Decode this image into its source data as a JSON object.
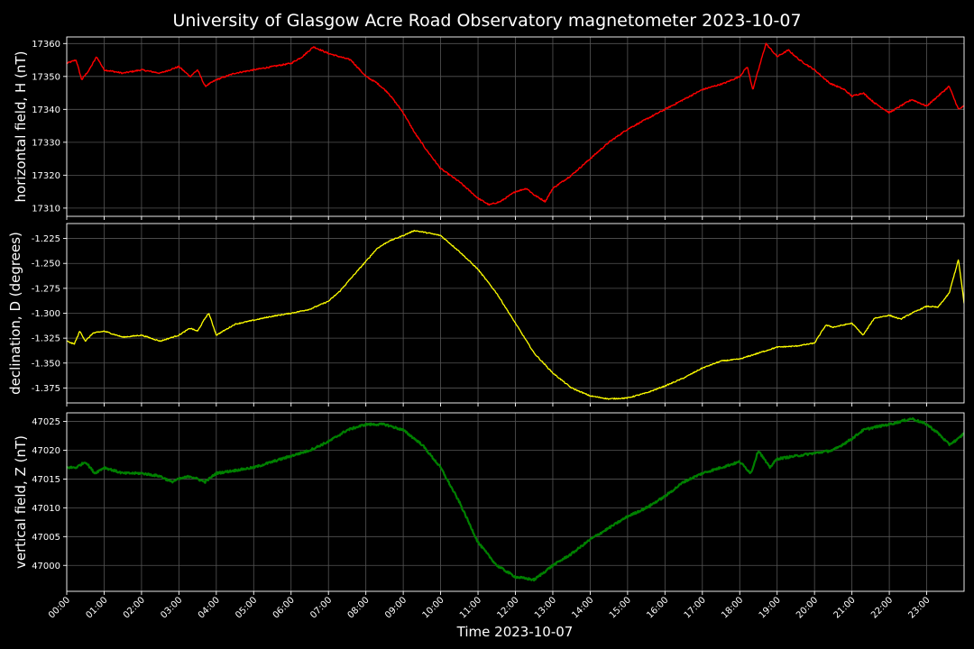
{
  "title": "University of Glasgow Acre Road Observatory magnetometer 2023-10-07",
  "xlabel": "Time 2023-10-07",
  "x_ticks": [
    "00:00",
    "01:00",
    "02:00",
    "03:00",
    "04:00",
    "05:00",
    "06:00",
    "07:00",
    "08:00",
    "09:00",
    "10:00",
    "11:00",
    "12:00",
    "13:00",
    "14:00",
    "15:00",
    "16:00",
    "17:00",
    "18:00",
    "19:00",
    "20:00",
    "21:00",
    "22:00",
    "23:00"
  ],
  "background": "#000000",
  "grid_color": "#555555",
  "chart_data": [
    {
      "type": "line",
      "ylabel": "horizontal field, H (nT)",
      "ylim": [
        17307.5,
        17362
      ],
      "y_ticks": [
        17310,
        17320,
        17330,
        17340,
        17350,
        17360
      ],
      "grid": true,
      "series": [
        {
          "color": "#ff0000",
          "x": [
            0,
            0.25,
            0.4,
            0.6,
            0.8,
            1,
            1.5,
            2,
            2.5,
            3,
            3.3,
            3.5,
            3.7,
            4,
            4.5,
            5,
            5.5,
            6,
            6.3,
            6.6,
            7,
            7.3,
            7.6,
            8,
            8.3,
            8.6,
            9,
            9.3,
            9.6,
            10,
            10.5,
            11,
            11.3,
            11.6,
            12,
            12.3,
            12.5,
            12.8,
            13,
            13.5,
            14,
            14.5,
            15,
            15.5,
            16,
            16.5,
            17,
            17.3,
            17.6,
            18,
            18.2,
            18.35,
            18.5,
            18.7,
            19,
            19.3,
            19.6,
            20,
            20.4,
            20.8,
            21,
            21.3,
            21.6,
            22,
            22.3,
            22.6,
            23,
            23.3,
            23.6,
            23.85,
            24
          ],
          "y": [
            17354,
            17355,
            17349,
            17352,
            17356,
            17352,
            17351,
            17352,
            17351,
            17353,
            17350,
            17352,
            17347,
            17349,
            17351,
            17352,
            17353,
            17354,
            17356,
            17359,
            17357,
            17356,
            17355,
            17350,
            17348,
            17345,
            17339,
            17333,
            17328,
            17322,
            17318,
            17313,
            17311,
            17312,
            17315,
            17316,
            17314,
            17312,
            17316,
            17320,
            17325,
            17330,
            17334,
            17337,
            17340,
            17343,
            17346,
            17347,
            17348,
            17350,
            17353,
            17346,
            17352,
            17360,
            17356,
            17358,
            17355,
            17352,
            17348,
            17346,
            17344,
            17345,
            17342,
            17339,
            17341,
            17343,
            17341,
            17344,
            17347,
            17340,
            17341
          ]
        }
      ]
    },
    {
      "type": "line",
      "ylabel": "declination, D (degrees)",
      "ylim": [
        -1.39,
        -1.21
      ],
      "y_ticks": [
        -1.225,
        -1.25,
        -1.275,
        -1.3,
        -1.325,
        -1.35,
        -1.375
      ],
      "grid": true,
      "series": [
        {
          "color": "#ffff00",
          "x": [
            0,
            0.2,
            0.35,
            0.5,
            0.7,
            1,
            1.5,
            2,
            2.5,
            3,
            3.3,
            3.5,
            3.7,
            3.8,
            4,
            4.5,
            5,
            5.5,
            6,
            6.5,
            7,
            7.3,
            7.6,
            8,
            8.3,
            8.6,
            9,
            9.3,
            9.6,
            10,
            10.5,
            11,
            11.5,
            12,
            12.5,
            13,
            13.5,
            14,
            14.5,
            15,
            15.5,
            16,
            16.5,
            17,
            17.5,
            18,
            18.5,
            19,
            19.5,
            20,
            20.3,
            20.5,
            21,
            21.3,
            21.6,
            22,
            22.3,
            22.6,
            23,
            23.3,
            23.6,
            23.85,
            24
          ],
          "y": [
            -1.328,
            -1.331,
            -1.318,
            -1.328,
            -1.32,
            -1.318,
            -1.324,
            -1.322,
            -1.328,
            -1.322,
            -1.315,
            -1.318,
            -1.305,
            -1.3,
            -1.322,
            -1.311,
            -1.307,
            -1.303,
            -1.3,
            -1.296,
            -1.288,
            -1.278,
            -1.265,
            -1.248,
            -1.235,
            -1.228,
            -1.222,
            -1.217,
            -1.219,
            -1.222,
            -1.238,
            -1.256,
            -1.28,
            -1.31,
            -1.34,
            -1.36,
            -1.375,
            -1.383,
            -1.386,
            -1.385,
            -1.38,
            -1.373,
            -1.365,
            -1.355,
            -1.348,
            -1.346,
            -1.34,
            -1.334,
            -1.333,
            -1.33,
            -1.312,
            -1.314,
            -1.31,
            -1.322,
            -1.305,
            -1.302,
            -1.306,
            -1.3,
            -1.293,
            -1.294,
            -1.28,
            -1.246,
            -1.29
          ]
        }
      ]
    },
    {
      "type": "line",
      "ylabel": "vertical field, Z (nT)",
      "ylim": [
        46995.5,
        47026.5
      ],
      "y_ticks": [
        47000,
        47005,
        47010,
        47015,
        47020,
        47025
      ],
      "grid": true,
      "series": [
        {
          "color": "#008000",
          "x": [
            0,
            0.25,
            0.5,
            0.75,
            1,
            1.5,
            2,
            2.5,
            2.8,
            3,
            3.3,
            3.5,
            3.7,
            4,
            4.5,
            5,
            5.5,
            6,
            6.5,
            7,
            7.5,
            8,
            8.5,
            9,
            9.5,
            10,
            10.5,
            11,
            11.5,
            12,
            12.5,
            13,
            13.5,
            14,
            14.5,
            15,
            15.5,
            16,
            16.5,
            17,
            17.5,
            18,
            18.3,
            18.5,
            18.8,
            19,
            19.5,
            20,
            20.5,
            21,
            21.3,
            21.6,
            22,
            22.3,
            22.6,
            23,
            23.3,
            23.6,
            23.85,
            24
          ],
          "y": [
            47017,
            47017,
            47018,
            47016,
            47017,
            47016,
            47016,
            47015.5,
            47014.5,
            47015,
            47015.5,
            47015,
            47014.5,
            47016,
            47016.5,
            47017,
            47018,
            47019,
            47020,
            47021.5,
            47023.5,
            47024.5,
            47024.5,
            47023.5,
            47021,
            47017,
            47011,
            47004,
            47000,
            46998,
            46997.5,
            47000,
            47002,
            47004.5,
            47006.5,
            47008.5,
            47010,
            47012,
            47014.5,
            47016,
            47017,
            47018,
            47016,
            47020,
            47017,
            47018.5,
            47019,
            47019.5,
            47020,
            47022,
            47023.5,
            47024,
            47024.5,
            47025,
            47025.5,
            47024.5,
            47023,
            47021,
            47022,
            47023
          ]
        }
      ]
    }
  ]
}
